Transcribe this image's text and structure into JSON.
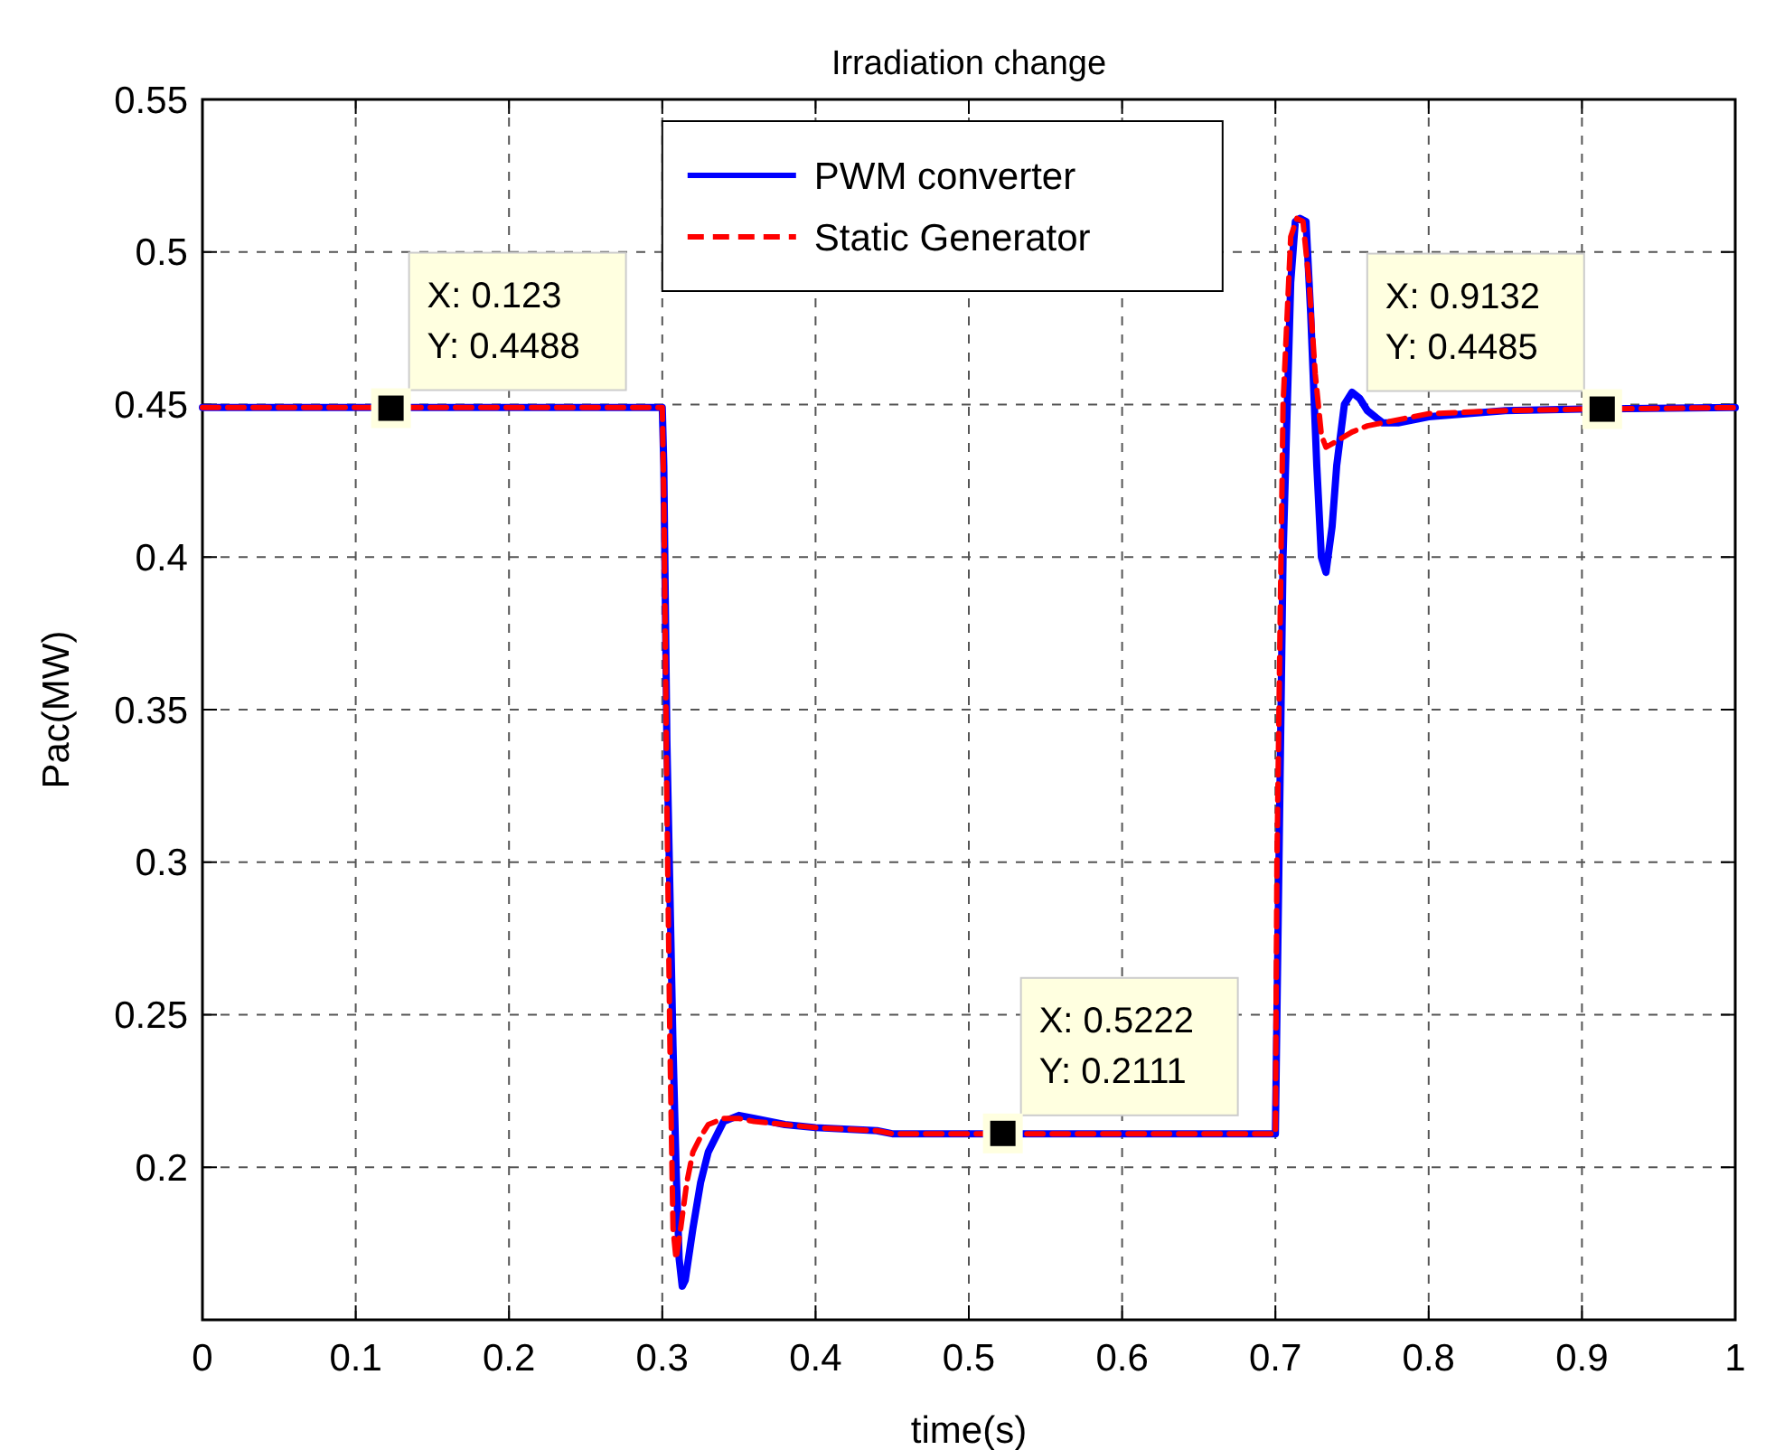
{
  "chart_data": {
    "type": "line",
    "title": "Irradiation change",
    "xlabel": "time(s)",
    "ylabel": "Pac(MW)",
    "xlim": [
      0,
      1
    ],
    "xticks": [
      0,
      0.1,
      0.2,
      0.3,
      0.4,
      0.5,
      0.6,
      0.7,
      0.8,
      0.9,
      1
    ],
    "ylim": [
      0.15,
      0.55
    ],
    "yticks": [
      0.2,
      0.25,
      0.3,
      0.35,
      0.4,
      0.45,
      0.5,
      0.55
    ],
    "grid": true,
    "legend": "top",
    "series": [
      {
        "name": "PWM converter",
        "color": "#0000ff",
        "line_style": "solid",
        "x": [
          0,
          0.3,
          0.301,
          0.303,
          0.305,
          0.307,
          0.309,
          0.311,
          0.313,
          0.315,
          0.32,
          0.325,
          0.33,
          0.34,
          0.35,
          0.36,
          0.38,
          0.4,
          0.44,
          0.45,
          0.7,
          0.701,
          0.705,
          0.71,
          0.713,
          0.716,
          0.72,
          0.723,
          0.727,
          0.73,
          0.733,
          0.737,
          0.74,
          0.745,
          0.75,
          0.755,
          0.76,
          0.77,
          0.78,
          0.8,
          0.85,
          0.9,
          1
        ],
        "values": [
          0.449,
          0.449,
          0.43,
          0.34,
          0.29,
          0.24,
          0.2,
          0.17,
          0.161,
          0.163,
          0.18,
          0.195,
          0.205,
          0.215,
          0.217,
          0.216,
          0.214,
          0.213,
          0.212,
          0.211,
          0.211,
          0.25,
          0.4,
          0.49,
          0.51,
          0.511,
          0.51,
          0.48,
          0.43,
          0.4,
          0.395,
          0.41,
          0.43,
          0.45,
          0.454,
          0.452,
          0.448,
          0.444,
          0.444,
          0.446,
          0.448,
          0.4485,
          0.449
        ]
      },
      {
        "name": "Static Generator",
        "color": "#ff0000",
        "line_style": "dashed",
        "x": [
          0,
          0.3,
          0.301,
          0.303,
          0.305,
          0.307,
          0.309,
          0.312,
          0.316,
          0.32,
          0.325,
          0.33,
          0.34,
          0.35,
          0.36,
          0.38,
          0.4,
          0.44,
          0.45,
          0.7,
          0.701,
          0.705,
          0.71,
          0.714,
          0.718,
          0.722,
          0.726,
          0.73,
          0.733,
          0.74,
          0.75,
          0.76,
          0.78,
          0.8,
          0.85,
          0.9,
          1
        ],
        "values": [
          0.449,
          0.449,
          0.42,
          0.32,
          0.24,
          0.18,
          0.17,
          0.18,
          0.195,
          0.205,
          0.21,
          0.214,
          0.216,
          0.216,
          0.215,
          0.214,
          0.213,
          0.212,
          0.211,
          0.211,
          0.3,
          0.45,
          0.505,
          0.511,
          0.51,
          0.49,
          0.46,
          0.44,
          0.436,
          0.438,
          0.441,
          0.443,
          0.445,
          0.447,
          0.448,
          0.4485,
          0.449
        ]
      }
    ],
    "annotations": [
      {
        "text": "X: 0.123\nY: 0.4488",
        "x": 0.123,
        "y": 0.4488
      },
      {
        "text": "X: 0.5222\nY: 0.2111",
        "x": 0.5222,
        "y": 0.2111
      },
      {
        "text": "X: 0.9132\nY: 0.4485",
        "x": 0.9132,
        "y": 0.4485
      }
    ]
  }
}
